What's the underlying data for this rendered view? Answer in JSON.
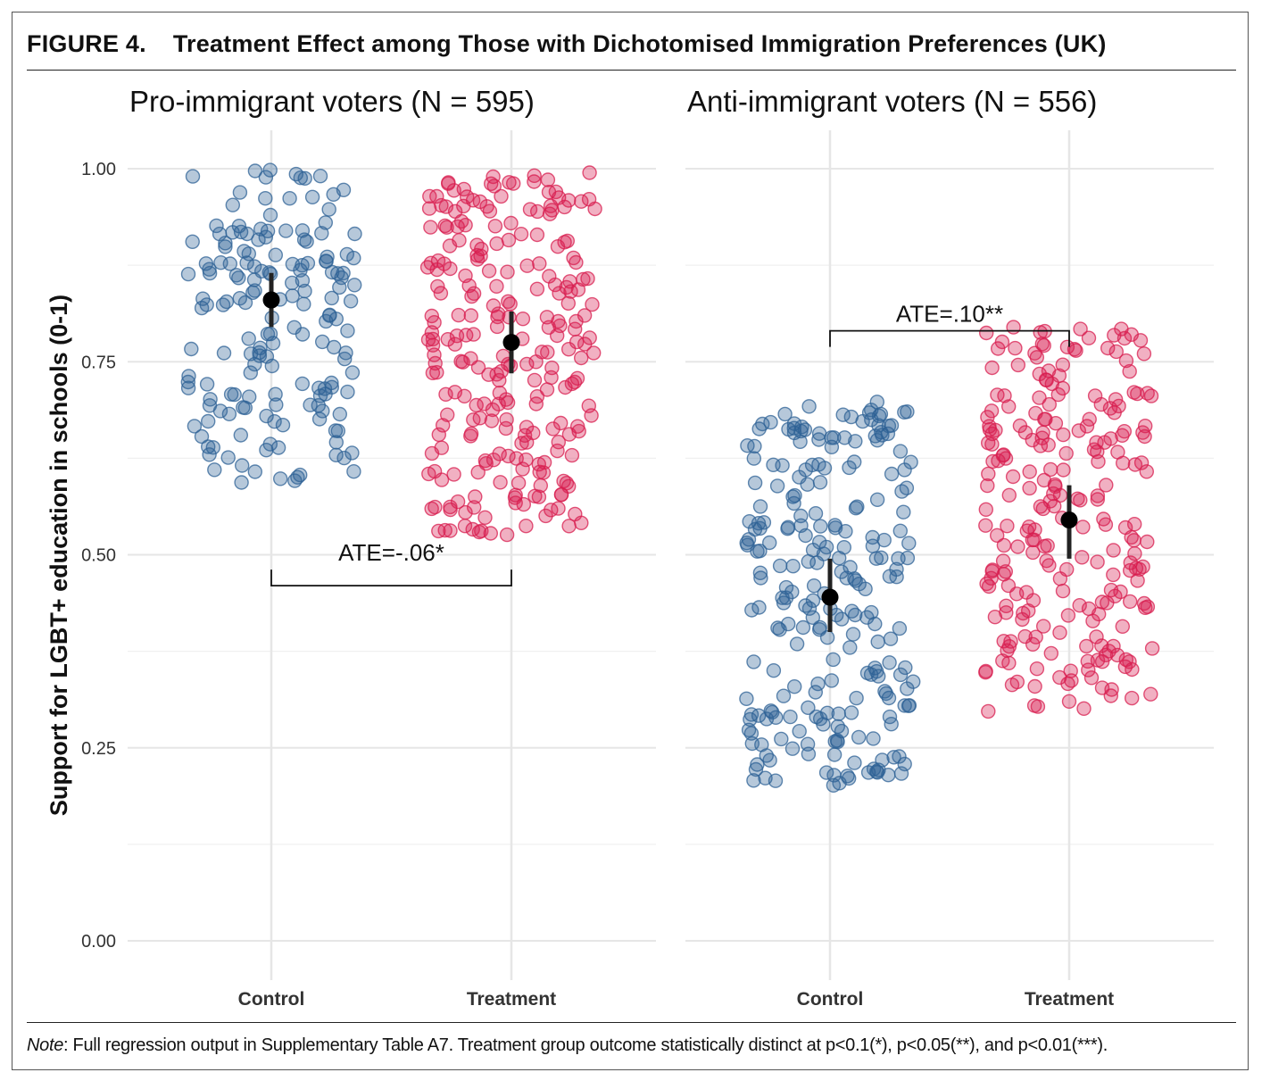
{
  "figure": {
    "label": "FIGURE 4.",
    "title": "Treatment Effect among Those with Dichotomised Immigration Preferences (UK)",
    "note_prefix": "Note",
    "note_text": ": Full regression output in Supplementary Table A7. Treatment group outcome statistically distinct at p<0.1(*), p<0.05(**), and p<0.01(***)."
  },
  "colors": {
    "control": "#2d6195",
    "treatment": "#d81d4f",
    "mean": "#000000",
    "grid": "#e6e6e6"
  },
  "chart_data": [
    {
      "type": "scatter",
      "title": "Pro-immigrant voters (N = 595)",
      "ylabel": "Support for LGBT+ education in schools (0-1)",
      "ylim": [
        0,
        1
      ],
      "yticks": [
        "0.00",
        "0.25",
        "0.50",
        "0.75",
        "1.00"
      ],
      "categories": [
        "Control",
        "Treatment"
      ],
      "series": [
        {
          "group": "Control",
          "mean": 0.83,
          "ci": [
            0.795,
            0.865
          ],
          "range": [
            0.59,
            1.0
          ],
          "n_points": 170
        },
        {
          "group": "Treatment",
          "mean": 0.775,
          "ci": [
            0.735,
            0.815
          ],
          "range": [
            0.525,
            1.0
          ],
          "n_points": 250
        }
      ],
      "annotation": {
        "text": "ATE=-.06*",
        "bracket_y": 0.46,
        "position": "below"
      }
    },
    {
      "type": "scatter",
      "title": "Anti-immigrant voters (N = 556)",
      "ylim": [
        0,
        1
      ],
      "categories": [
        "Control",
        "Treatment"
      ],
      "series": [
        {
          "group": "Control",
          "mean": 0.445,
          "ci": [
            0.4,
            0.495
          ],
          "range": [
            0.2,
            0.7
          ],
          "n_points": 240
        },
        {
          "group": "Treatment",
          "mean": 0.545,
          "ci": [
            0.495,
            0.59
          ],
          "range": [
            0.295,
            0.795
          ],
          "n_points": 240
        }
      ],
      "annotation": {
        "text": "ATE=.10**",
        "bracket_y": 0.79,
        "position": "above"
      }
    }
  ]
}
